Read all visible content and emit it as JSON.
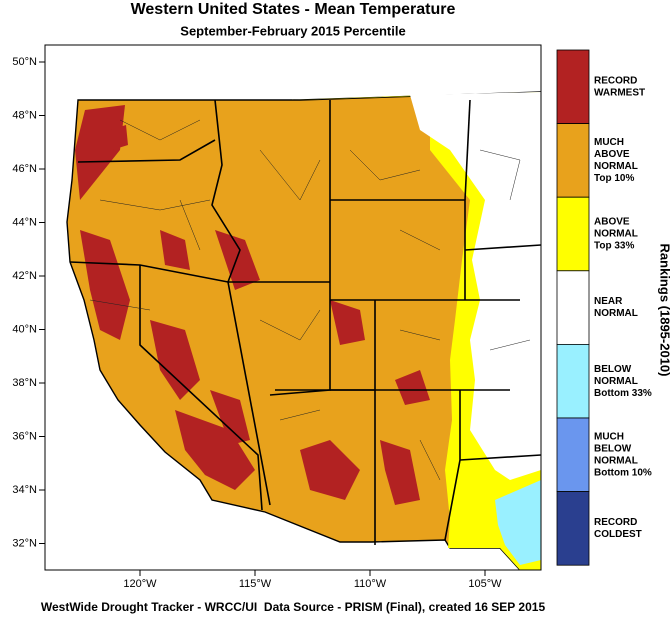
{
  "title": "Western United States - Mean Temperature",
  "subtitle": "September-February 2015 Percentile",
  "lat_ticks": [
    "50°N",
    "48°N",
    "46°N",
    "44°N",
    "42°N",
    "40°N",
    "38°N",
    "36°N",
    "34°N",
    "32°N"
  ],
  "lon_ticks": [
    "120°W",
    "115°W",
    "110°W",
    "105°W"
  ],
  "legend": {
    "title": "Rankings (1895-2010)",
    "items": [
      {
        "lines": [
          "RECORD",
          "WARMEST"
        ]
      },
      {
        "lines": [
          "MUCH",
          "ABOVE",
          "NORMAL",
          "Top 10%"
        ]
      },
      {
        "lines": [
          "ABOVE",
          "NORMAL",
          "Top 33%"
        ]
      },
      {
        "lines": [
          "NEAR",
          "NORMAL"
        ]
      },
      {
        "lines": [
          "BELOW",
          "NORMAL",
          "Bottom 33%"
        ]
      },
      {
        "lines": [
          "MUCH",
          "BELOW",
          "NORMAL",
          "Bottom 10%"
        ]
      },
      {
        "lines": [
          "RECORD",
          "COLDEST"
        ]
      }
    ]
  },
  "footer": "WestWide Drought Tracker - WRCC/UI  Data Source - PRISM (Final), created 16 SEP 2015"
}
